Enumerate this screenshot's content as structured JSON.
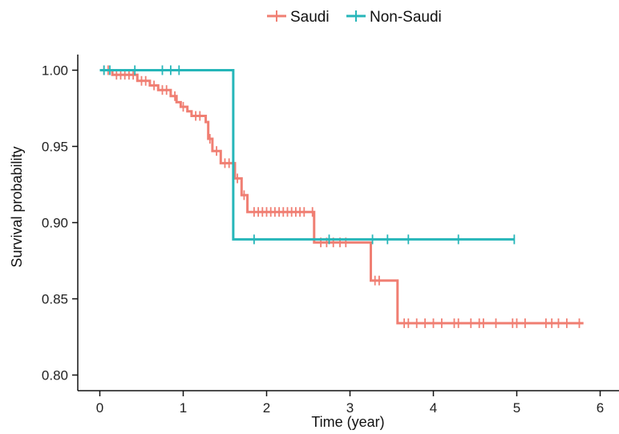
{
  "chart_data": {
    "type": "line",
    "xlabel": "Time (year)",
    "ylabel": "Survival probability",
    "xlim": [
      -0.25,
      6.25
    ],
    "ylim": [
      0.79,
      1.01
    ],
    "xticks": [
      0,
      1,
      2,
      3,
      4,
      5,
      6
    ],
    "xtick_labels": [
      "0",
      "1",
      "2",
      "3",
      "4",
      "5",
      "6"
    ],
    "yticks": [
      0.8,
      0.85,
      0.9,
      0.95,
      1.0
    ],
    "ytick_labels": [
      "0.80",
      "0.85",
      "0.90",
      "0.95",
      "1.00"
    ],
    "grid": false,
    "legend_position": "top",
    "series": [
      {
        "name": "Saudi",
        "color": "#F07F73",
        "steps": [
          [
            0,
            1.0
          ],
          [
            0.15,
            0.997
          ],
          [
            0.45,
            0.993
          ],
          [
            0.6,
            0.99
          ],
          [
            0.7,
            0.987
          ],
          [
            0.85,
            0.983
          ],
          [
            0.92,
            0.979
          ],
          [
            0.97,
            0.976
          ],
          [
            1.05,
            0.973
          ],
          [
            1.1,
            0.97
          ],
          [
            1.27,
            0.966
          ],
          [
            1.3,
            0.955
          ],
          [
            1.35,
            0.947
          ],
          [
            1.45,
            0.939
          ],
          [
            1.62,
            0.929
          ],
          [
            1.7,
            0.918
          ],
          [
            1.77,
            0.907
          ],
          [
            2.57,
            0.887
          ],
          [
            3.25,
            0.862
          ],
          [
            3.57,
            0.834
          ],
          [
            5.8,
            0.834
          ]
        ],
        "censored": [
          [
            0.05,
            1.0
          ],
          [
            0.1,
            1.0
          ],
          [
            0.2,
            0.997
          ],
          [
            0.25,
            0.997
          ],
          [
            0.3,
            0.997
          ],
          [
            0.35,
            0.997
          ],
          [
            0.4,
            0.997
          ],
          [
            0.5,
            0.993
          ],
          [
            0.55,
            0.993
          ],
          [
            0.65,
            0.99
          ],
          [
            0.75,
            0.987
          ],
          [
            0.8,
            0.987
          ],
          [
            0.9,
            0.983
          ],
          [
            1.0,
            0.976
          ],
          [
            1.15,
            0.97
          ],
          [
            1.2,
            0.97
          ],
          [
            1.32,
            0.955
          ],
          [
            1.4,
            0.947
          ],
          [
            1.5,
            0.939
          ],
          [
            1.55,
            0.939
          ],
          [
            1.65,
            0.929
          ],
          [
            1.73,
            0.918
          ],
          [
            1.85,
            0.907
          ],
          [
            1.9,
            0.907
          ],
          [
            1.95,
            0.907
          ],
          [
            2.0,
            0.907
          ],
          [
            2.05,
            0.907
          ],
          [
            2.1,
            0.907
          ],
          [
            2.15,
            0.907
          ],
          [
            2.2,
            0.907
          ],
          [
            2.25,
            0.907
          ],
          [
            2.3,
            0.907
          ],
          [
            2.35,
            0.907
          ],
          [
            2.4,
            0.907
          ],
          [
            2.45,
            0.907
          ],
          [
            2.55,
            0.907
          ],
          [
            2.65,
            0.887
          ],
          [
            2.72,
            0.887
          ],
          [
            2.8,
            0.887
          ],
          [
            2.88,
            0.887
          ],
          [
            2.95,
            0.887
          ],
          [
            3.3,
            0.862
          ],
          [
            3.35,
            0.862
          ],
          [
            3.65,
            0.834
          ],
          [
            3.7,
            0.834
          ],
          [
            3.8,
            0.834
          ],
          [
            3.9,
            0.834
          ],
          [
            4.0,
            0.834
          ],
          [
            4.1,
            0.834
          ],
          [
            4.25,
            0.834
          ],
          [
            4.3,
            0.834
          ],
          [
            4.45,
            0.834
          ],
          [
            4.55,
            0.834
          ],
          [
            4.6,
            0.834
          ],
          [
            4.75,
            0.834
          ],
          [
            4.95,
            0.834
          ],
          [
            5.0,
            0.834
          ],
          [
            5.1,
            0.834
          ],
          [
            5.35,
            0.834
          ],
          [
            5.42,
            0.834
          ],
          [
            5.5,
            0.834
          ],
          [
            5.6,
            0.834
          ],
          [
            5.75,
            0.834
          ]
        ]
      },
      {
        "name": "Non-Saudi",
        "color": "#26B6B9",
        "steps": [
          [
            0,
            1.0
          ],
          [
            1.6,
            0.889
          ],
          [
            4.97,
            0.889
          ]
        ],
        "censored": [
          [
            0.05,
            1.0
          ],
          [
            0.12,
            1.0
          ],
          [
            0.42,
            1.0
          ],
          [
            0.75,
            1.0
          ],
          [
            0.85,
            1.0
          ],
          [
            0.95,
            1.0
          ],
          [
            1.85,
            0.889
          ],
          [
            2.75,
            0.889
          ],
          [
            3.27,
            0.889
          ],
          [
            3.45,
            0.889
          ],
          [
            3.7,
            0.889
          ],
          [
            4.3,
            0.889
          ],
          [
            4.97,
            0.889
          ]
        ]
      }
    ]
  }
}
